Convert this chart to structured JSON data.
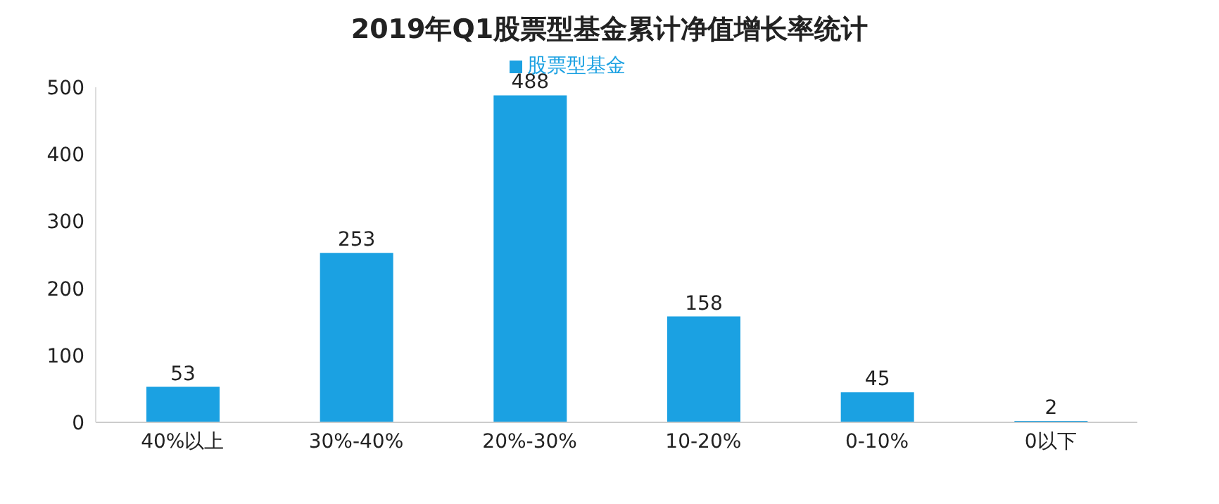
{
  "chart_data": {
    "type": "bar",
    "title": "2019年Q1股票型基金累计净值增长率统计",
    "categories": [
      "40%以上",
      "30%-40%",
      "20%-30%",
      "10-20%",
      "0-10%",
      "0以下"
    ],
    "series": [
      {
        "name": "股票型基金",
        "color": "#1ba1e2",
        "values": [
          53,
          253,
          488,
          158,
          45,
          2
        ]
      }
    ],
    "ylim": [
      0,
      500
    ],
    "yticks": [
      0,
      100,
      200,
      300,
      400,
      500
    ],
    "grid": false,
    "legend": "top",
    "data_labels": true
  }
}
